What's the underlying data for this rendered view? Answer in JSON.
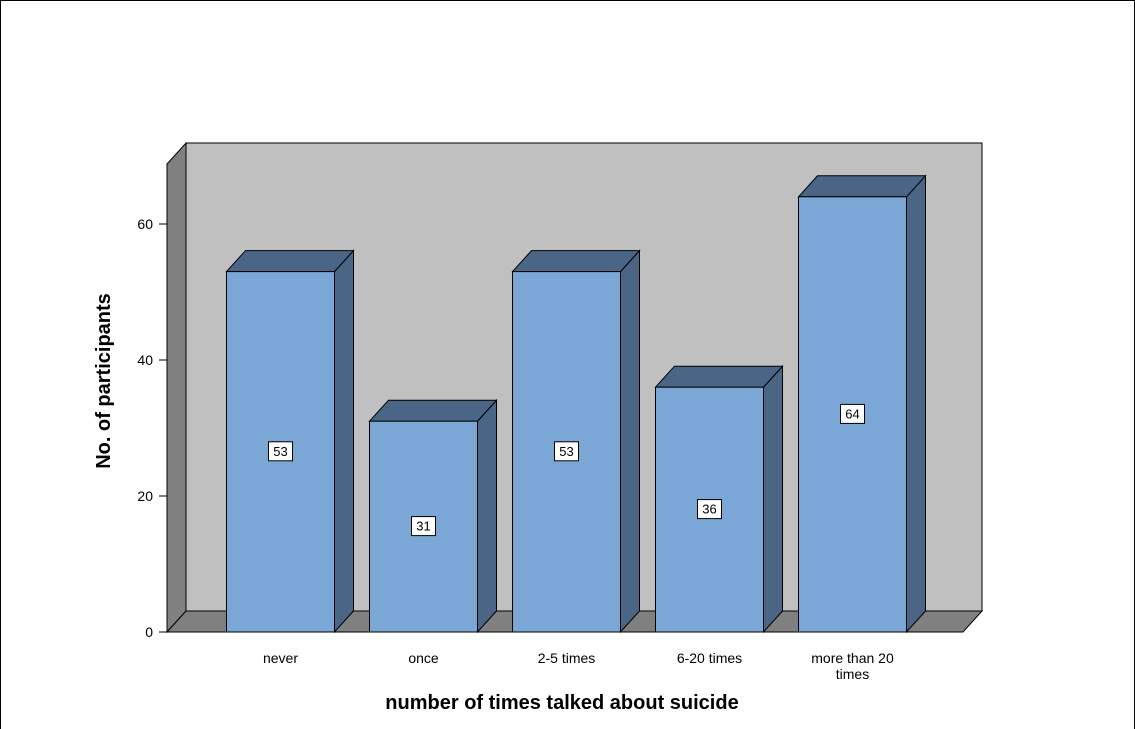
{
  "chart_data": {
    "type": "bar",
    "categories": [
      "never",
      "once",
      "2-5 times",
      "6-20 times",
      "more than 20 times"
    ],
    "values": [
      53,
      31,
      53,
      36,
      64
    ],
    "data_labels": [
      "53",
      "31",
      "53",
      "36",
      "64"
    ],
    "xlabel": "number of times talked about suicide",
    "ylabel": "No. of participants",
    "ylim": [
      0,
      70
    ],
    "yticks": [
      0,
      20,
      40,
      60
    ],
    "ytick_labels": [
      "0",
      "20",
      "40",
      "60"
    ],
    "grid": false,
    "legend": "none",
    "style": "3d",
    "colors": {
      "bar_front": "#7ba7d6",
      "bar_side": "#4a6585",
      "bar_top": "#4a6585",
      "back_wall": "#c0c0c0",
      "side_wall": "#808080",
      "floor": "#808080",
      "label_box": "#ffffff"
    }
  }
}
